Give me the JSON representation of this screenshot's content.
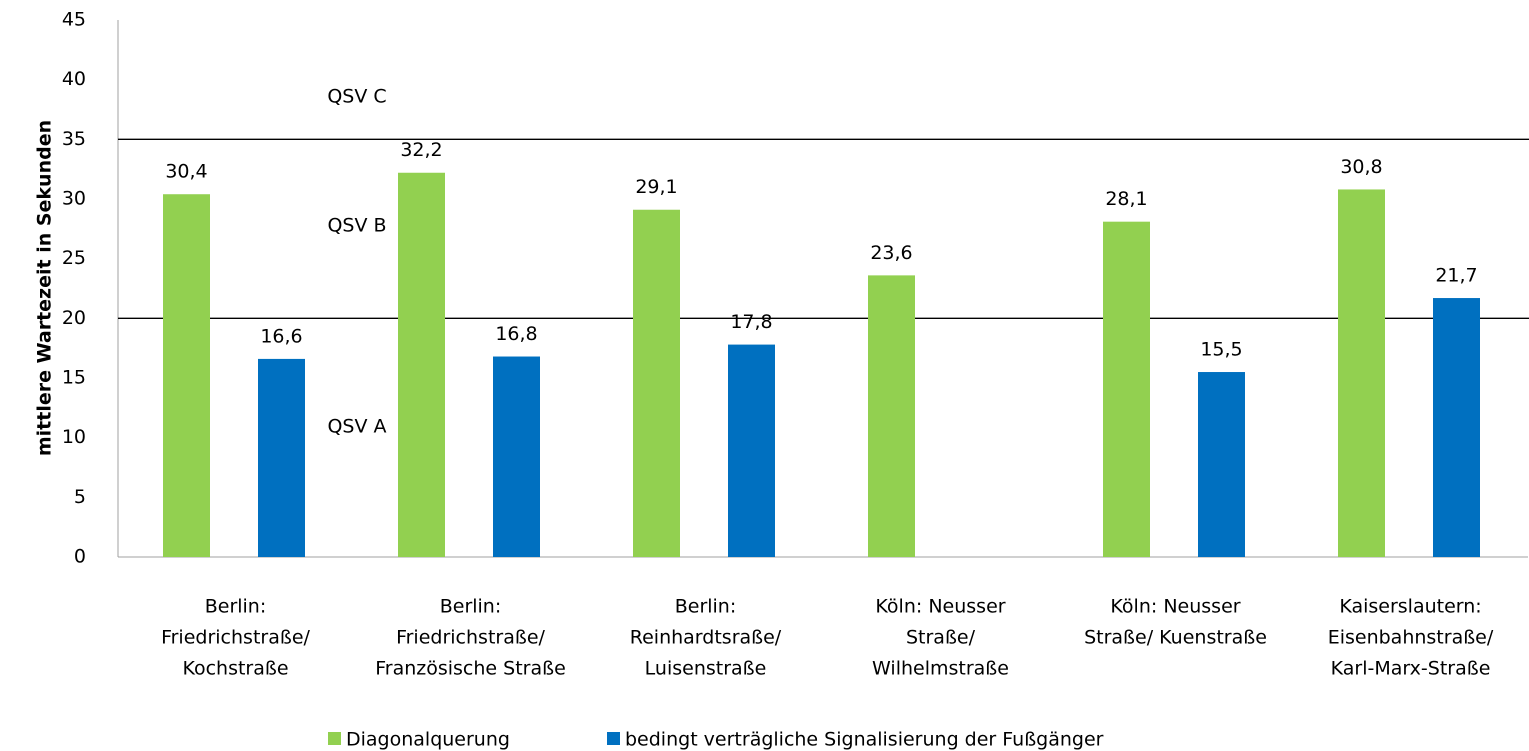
{
  "chart_data": {
    "type": "bar",
    "y_label": "mittlere Wartezeit in Sekunden",
    "categories": [
      [
        "Berlin:",
        "Friedrichstraße/",
        "Kochstraße"
      ],
      [
        "Berlin:",
        "Friedrichstraße/",
        "Französische Straße"
      ],
      [
        "Berlin:",
        "Reinhardtsraße/",
        "Luisenstraße"
      ],
      [
        "Köln: Neusser",
        "Straße/",
        "Wilhelmstraße"
      ],
      [
        "Köln: Neusser",
        "Straße/ Kuenstraße"
      ],
      [
        "Kaiserslautern:",
        "Eisenbahnstraße/",
        "Karl-Marx-Straße"
      ]
    ],
    "series": [
      {
        "name": "Diagonalquerung",
        "color": "#92d050",
        "values": [
          30.4,
          32.2,
          29.1,
          23.6,
          28.1,
          30.8
        ],
        "value_labels": [
          "30,4",
          "32,2",
          "29,1",
          "23,6",
          "28,1",
          "30,8"
        ]
      },
      {
        "name": "bedingt verträgliche Signalisierung der Fußgänger",
        "color": "#0070c0",
        "values": [
          16.6,
          16.8,
          17.8,
          null,
          15.5,
          21.7
        ],
        "value_labels": [
          "16,6",
          "16,8",
          "17,8",
          null,
          "15,5",
          "21,7"
        ]
      }
    ],
    "reference_lines": [
      35,
      20
    ],
    "annotations": [
      "QSV C",
      "QSV B",
      "QSV A"
    ],
    "ylim": [
      0,
      45
    ],
    "yticks": [
      0,
      5,
      10,
      15,
      20,
      25,
      30,
      35,
      40,
      45
    ],
    "legend": "bottom"
  }
}
